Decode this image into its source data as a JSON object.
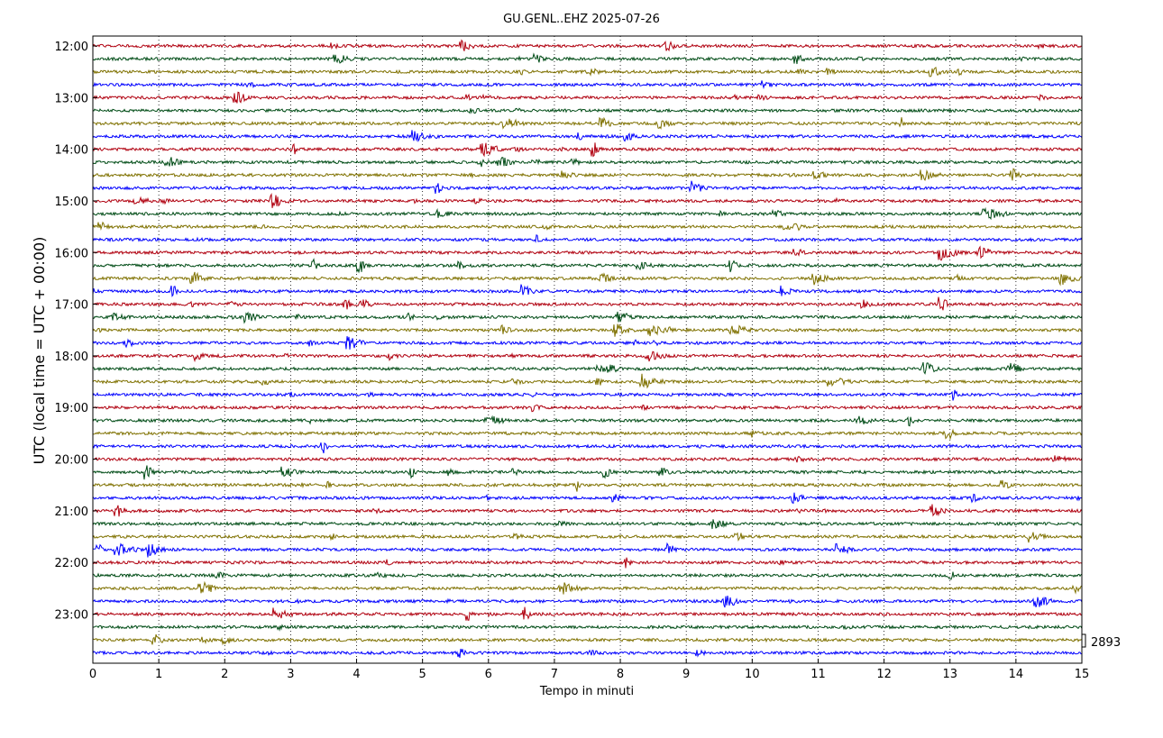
{
  "chart_data": {
    "type": "line",
    "title": "GU.GENL..EHZ 2025-07-26",
    "xlabel": "Tempo in minuti",
    "ylabel": "UTC (local time = UTC + 00:00)",
    "xlim": [
      0,
      15
    ],
    "x_ticks": [
      "0",
      "1",
      "2",
      "3",
      "4",
      "5",
      "6",
      "7",
      "8",
      "9",
      "10",
      "11",
      "12",
      "13",
      "14",
      "15"
    ],
    "y_ticks": [
      "12:00",
      "13:00",
      "14:00",
      "15:00",
      "16:00",
      "17:00",
      "18:00",
      "19:00",
      "20:00",
      "21:00",
      "22:00",
      "23:00"
    ],
    "trace_interval_minutes": 15,
    "first_trace": "12:00",
    "last_trace": "23:45",
    "trace_colors": [
      "#b0000f",
      "#004c16",
      "#7f7100",
      "#0000ff"
    ],
    "scale_value": "2893",
    "grid": "vertical dotted lines at each minute",
    "series_description": "48 helicorder traces of seismometer velocity counts, color cycling red, green, olive, blue"
  }
}
